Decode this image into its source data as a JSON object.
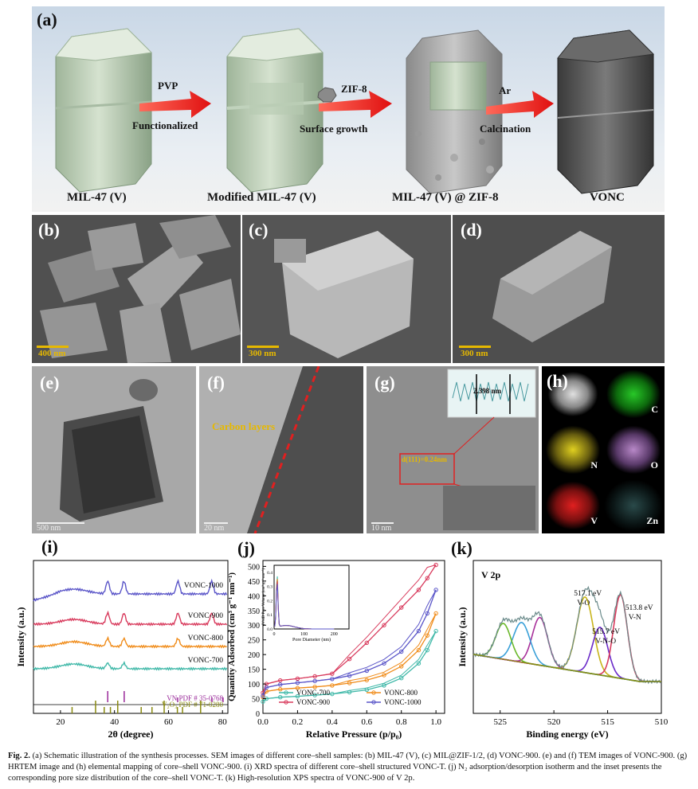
{
  "panel_a": {
    "label": "(a)",
    "stages": [
      "MIL-47 (V)",
      "Modified MIL-47 (V)",
      "MIL-47 (V) @ ZIF-8",
      "VONC"
    ],
    "arrows": [
      {
        "top": "PVP",
        "bottom": "Functionalized"
      },
      {
        "top": "ZIF-8",
        "bottom": "Surface growth"
      },
      {
        "top": "Ar",
        "bottom": "Calcination"
      }
    ]
  },
  "panel_b": {
    "label": "(b)",
    "scale": "400 nm"
  },
  "panel_c": {
    "label": "(c)",
    "scale": "300 nm"
  },
  "panel_d": {
    "label": "(d)",
    "scale": "300 nm"
  },
  "panel_e": {
    "label": "(e)",
    "scale": "500 nm"
  },
  "panel_f": {
    "label": "(f)",
    "scale": "20 nm",
    "annotation": "Carbon layers"
  },
  "panel_g": {
    "label": "(g)",
    "scale": "10 nm",
    "d_spacing": "d(111)=0.24nm",
    "inset_value": "2.398 nm"
  },
  "panel_h": {
    "label": "(h)",
    "elements": [
      "",
      "C",
      "N",
      "O",
      "V",
      "Zn"
    ]
  },
  "panel_i": {
    "label": "(i)"
  },
  "panel_j": {
    "label": "(j)"
  },
  "panel_k": {
    "label": "(k)"
  },
  "chart_data": [
    {
      "type": "line",
      "id": "i",
      "xlabel": "2θ (degree)",
      "ylabel": "Intensity (a.u.)",
      "xlim": [
        10,
        82
      ],
      "xticks": [
        20,
        40,
        60,
        80
      ],
      "series": [
        {
          "name": "VONC-1000",
          "color": "#5a55c8",
          "peaks": [
            37.5,
            43.5,
            63.5,
            76
          ]
        },
        {
          "name": "VONC-900",
          "color": "#d83a5c",
          "peaks": [
            37.5,
            43.5,
            63.5,
            76
          ]
        },
        {
          "name": "VONC-800",
          "color": "#f08c1a",
          "peaks": [
            37.5,
            43.5,
            63.5
          ]
        },
        {
          "name": "VONC-700",
          "color": "#3fb8a8",
          "peaks": [
            37.5,
            43.5
          ]
        }
      ],
      "references": [
        {
          "name": "VN PDF # 35-0768",
          "color": "#9a2a9a",
          "lines": [
            37.5,
            43.6,
            63.4,
            76.1,
            80.2
          ]
        },
        {
          "name": "V₂O₃ PDF # 71-0280",
          "color": "#8a8a10",
          "lines": [
            24.3,
            33.0,
            36.2,
            38.5,
            41.2,
            49.9,
            53.9,
            58.4,
            63.3,
            65.2,
            71.9
          ]
        }
      ]
    },
    {
      "type": "line",
      "id": "j",
      "xlabel": "Relative Pressure (p/p₀)",
      "ylabel": "Quantity Adsorbed (cm³ g⁻¹ nm⁻¹)",
      "xlim": [
        0,
        1.05
      ],
      "ylim": [
        0,
        520
      ],
      "xticks": [
        0.0,
        0.2,
        0.4,
        0.6,
        0.8,
        1.0
      ],
      "yticks": [
        0,
        50,
        100,
        150,
        200,
        250,
        300,
        350,
        400,
        450,
        500
      ],
      "series": [
        {
          "name": "VONC-700",
          "color": "#3fb8a8",
          "x": [
            0,
            0.02,
            0.1,
            0.2,
            0.3,
            0.4,
            0.5,
            0.6,
            0.7,
            0.8,
            0.9,
            0.95,
            1.0
          ],
          "y": [
            40,
            50,
            55,
            58,
            62,
            66,
            72,
            80,
            95,
            120,
            170,
            215,
            280
          ]
        },
        {
          "name": "VONC-800",
          "color": "#f08c1a",
          "x": [
            0,
            0.02,
            0.1,
            0.2,
            0.3,
            0.4,
            0.5,
            0.6,
            0.7,
            0.8,
            0.9,
            0.95,
            1.0
          ],
          "y": [
            55,
            75,
            82,
            86,
            90,
            95,
            103,
            113,
            130,
            160,
            215,
            265,
            340
          ]
        },
        {
          "name": "VONC-900",
          "color": "#d83a5c",
          "x": [
            0,
            0.02,
            0.1,
            0.2,
            0.3,
            0.4,
            0.5,
            0.6,
            0.7,
            0.8,
            0.9,
            0.95,
            1.0
          ],
          "y": [
            70,
            100,
            112,
            118,
            126,
            135,
            185,
            240,
            300,
            360,
            420,
            460,
            505
          ]
        },
        {
          "name": "VONC-1000",
          "color": "#5a55c8",
          "x": [
            0,
            0.02,
            0.1,
            0.2,
            0.3,
            0.4,
            0.5,
            0.6,
            0.7,
            0.8,
            0.9,
            0.95,
            1.0
          ],
          "y": [
            60,
            88,
            98,
            104,
            110,
            117,
            128,
            145,
            170,
            210,
            280,
            340,
            420
          ]
        }
      ],
      "inset": {
        "xlabel": "Pore Diameter (nm)",
        "ylabel": "dV/dD Pore Volume (cm³ g⁻¹ nm⁻¹)",
        "xticks": [
          0,
          100,
          200
        ],
        "yticks": [
          0.0,
          0.1,
          0.2,
          0.3,
          0.4
        ]
      }
    },
    {
      "type": "line",
      "id": "k",
      "title": "V 2p",
      "xlabel": "Binding energy (eV)",
      "ylabel": "Intensity (a.u.)",
      "xlim": [
        527.5,
        510
      ],
      "xticks": [
        525,
        520,
        515,
        510
      ],
      "peaks": [
        {
          "label": "517.1 eV\nV-O",
          "center": 517.1,
          "color": "#c8b41a"
        },
        {
          "label": "515.7 eV\nV-N-O",
          "center": 515.7,
          "color": "#6a2ac8"
        },
        {
          "label": "513.8 eV\nV-N",
          "center": 513.8,
          "color": "#d83a5c"
        },
        {
          "label": "",
          "center": 521.3,
          "color": "#a8309a"
        },
        {
          "label": "",
          "center": 523.0,
          "color": "#3aa0d8"
        },
        {
          "label": "",
          "center": 524.7,
          "color": "#6ab82a"
        }
      ]
    }
  ],
  "caption": {
    "label": "Fig. 2.",
    "text": " (a) Schematic illustration of the synthesis processes. SEM images of different core–shell samples: (b) MIL-47 (V), (c) MIL@ZIF-1/2, (d) VONC-900. (e) and (f) TEM images of VONC-900. (g) HRTEM image and (h) elemental mapping of core–shell VONC-900. (i) XRD spectra of different core–shell structured VONC-T. (j) N₂ adsorption/desorption isotherm and the inset presents the corresponding pore size distribution of the core–shell VONC-T. (k) High-resolution XPS spectra of VONC-900 of V 2p."
  }
}
